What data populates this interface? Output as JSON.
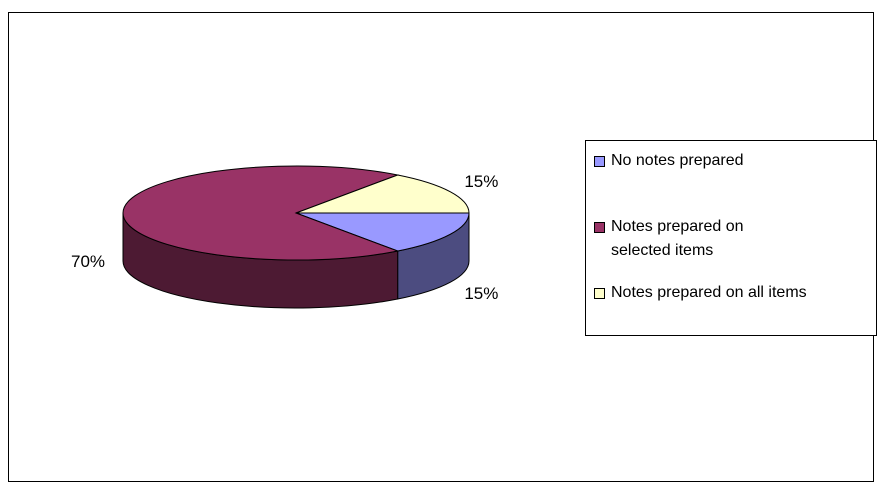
{
  "chart_data": {
    "type": "pie",
    "three_d": true,
    "categories": [
      "No notes prepared",
      "Notes prepared on selected items",
      "Notes prepared on all items"
    ],
    "values": [
      15,
      70,
      15
    ],
    "data_labels": [
      "15%",
      "70%",
      "15%"
    ],
    "colors": {
      "top": [
        "#9999ff",
        "#993366",
        "#ffffcc"
      ],
      "side": [
        "#4c4c80",
        "#4d1a33",
        "#80806a"
      ]
    },
    "legend_placement": "right",
    "title": "",
    "xlabel": "",
    "ylabel": ""
  },
  "legend": {
    "items": [
      {
        "label": "No notes prepared"
      },
      {
        "label": "Notes prepared on\nselected items"
      },
      {
        "label": "Notes prepared on all items"
      }
    ]
  }
}
